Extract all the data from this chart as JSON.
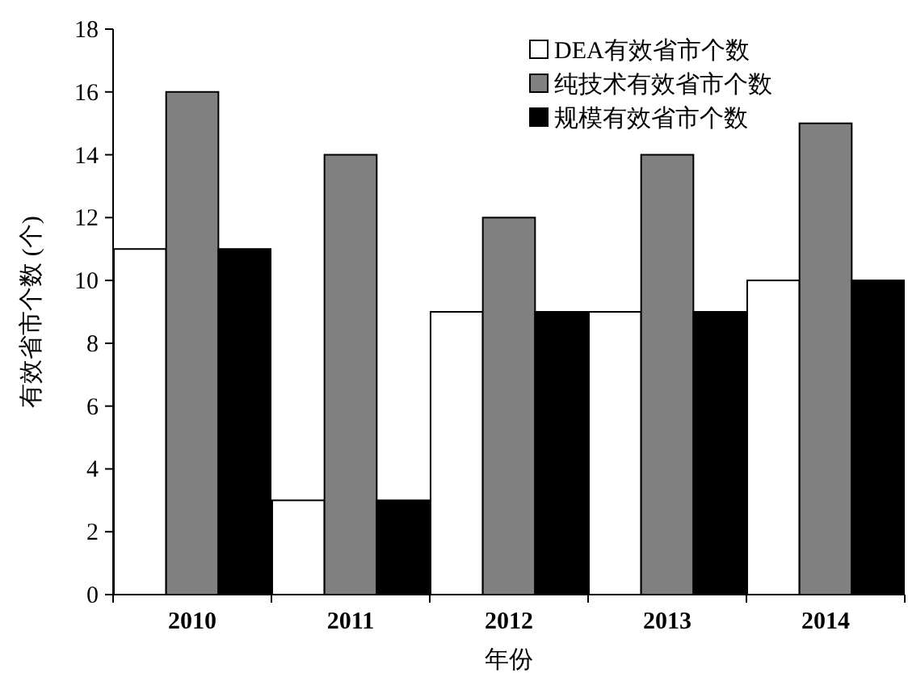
{
  "chart_data": {
    "type": "bar",
    "xlabel": "年份",
    "ylabel": "有效省市个数 (个)",
    "categories": [
      "2010",
      "2011",
      "2012",
      "2013",
      "2014"
    ],
    "series": [
      {
        "name": "DEA有效省市个数",
        "color": "#ffffff",
        "values": [
          11,
          3,
          9,
          9,
          10
        ]
      },
      {
        "name": "纯技术有效省市个数",
        "color": "#808080",
        "values": [
          16,
          14,
          12,
          14,
          15
        ]
      },
      {
        "name": "规模有效省市个数",
        "color": "#000000",
        "values": [
          11,
          3,
          9,
          9,
          10
        ]
      }
    ],
    "ylim": [
      0,
      18
    ],
    "yticks": [
      0,
      2,
      4,
      6,
      8,
      10,
      12,
      14,
      16,
      18
    ],
    "legend": "top right",
    "grid": false
  }
}
